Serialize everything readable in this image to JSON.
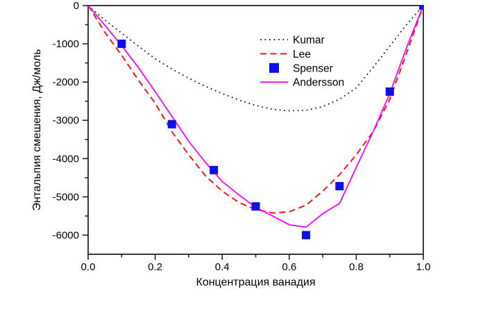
{
  "figure": {
    "background": "#ffffff",
    "frame_color": "#3a3a3a",
    "tick_color": "#222222",
    "text_color": "#000000"
  },
  "chart_data": {
    "type": "line",
    "title": "",
    "xlabel": "Концентрация ванадия",
    "ylabel": "Энтальпия смешения, Дж/моль",
    "xlim": [
      0.0,
      1.0
    ],
    "ylim": [
      -6500,
      0
    ],
    "grid": false,
    "x_tick_values": [
      0.0,
      0.2,
      0.4,
      0.6,
      0.8,
      1.0
    ],
    "x_tick_labels": [
      "0.0",
      "0.2",
      "0.4",
      "0.6",
      "0.8",
      "1.0"
    ],
    "x_minor_ticks": [
      0.1,
      0.3,
      0.5,
      0.7,
      0.9
    ],
    "y_tick_values": [
      0,
      -1000,
      -2000,
      -3000,
      -4000,
      -5000,
      -6000
    ],
    "y_tick_labels": [
      "0",
      "-1000",
      "-2000",
      "-3000",
      "-4000",
      "-5000",
      "-6000"
    ],
    "y_minor_ticks": [
      -500,
      -1500,
      -2500,
      -3500,
      -4500,
      -5500
    ],
    "legend": {
      "position": "upper-right-inside",
      "entries": [
        "Kumar",
        "Lee",
        "Spenser",
        "Andersson"
      ]
    },
    "series": [
      {
        "name": "Kumar",
        "type": "line",
        "line_style": "dotted",
        "color": "#000000",
        "x": [
          0,
          0.05,
          0.1,
          0.15,
          0.2,
          0.25,
          0.3,
          0.35,
          0.4,
          0.45,
          0.5,
          0.55,
          0.6,
          0.65,
          0.7,
          0.75,
          0.8,
          0.85,
          0.9,
          0.95,
          1.0
        ],
        "y": [
          0,
          -380,
          -720,
          -1060,
          -1390,
          -1660,
          -1900,
          -2110,
          -2300,
          -2470,
          -2610,
          -2710,
          -2750,
          -2740,
          -2640,
          -2450,
          -2150,
          -1620,
          -1060,
          -500,
          0
        ]
      },
      {
        "name": "Lee",
        "type": "line",
        "line_style": "dashed",
        "color": "#f21818",
        "x": [
          0,
          0.05,
          0.1,
          0.15,
          0.2,
          0.25,
          0.3,
          0.35,
          0.4,
          0.45,
          0.5,
          0.55,
          0.6,
          0.65,
          0.7,
          0.75,
          0.8,
          0.85,
          0.9,
          0.95,
          1.0
        ],
        "y": [
          0,
          -700,
          -1300,
          -1950,
          -2550,
          -3300,
          -3900,
          -4450,
          -4850,
          -5150,
          -5330,
          -5420,
          -5390,
          -5220,
          -4850,
          -4420,
          -3900,
          -3300,
          -2450,
          -1250,
          0
        ]
      },
      {
        "name": "Spenser",
        "type": "scatter",
        "marker": "square",
        "color": "#0e0eeb",
        "x": [
          0.1,
          0.25,
          0.375,
          0.5,
          0.65,
          0.75,
          0.9,
          1.0
        ],
        "y": [
          -1000,
          -3100,
          -4300,
          -5250,
          -6000,
          -4720,
          -2250,
          0
        ]
      },
      {
        "name": "Andersson",
        "type": "line",
        "line_style": "solid",
        "color": "#ff00ff",
        "x": [
          0,
          0.05,
          0.1,
          0.15,
          0.2,
          0.25,
          0.3,
          0.35,
          0.4,
          0.45,
          0.5,
          0.55,
          0.6,
          0.65,
          0.7,
          0.75,
          0.8,
          0.85,
          0.9,
          0.95,
          1.0
        ],
        "y": [
          0,
          -520,
          -1050,
          -1620,
          -2250,
          -2900,
          -3550,
          -4100,
          -4600,
          -4950,
          -5280,
          -5500,
          -5730,
          -5790,
          -5440,
          -5170,
          -4230,
          -3300,
          -2300,
          -1100,
          0
        ]
      }
    ]
  }
}
